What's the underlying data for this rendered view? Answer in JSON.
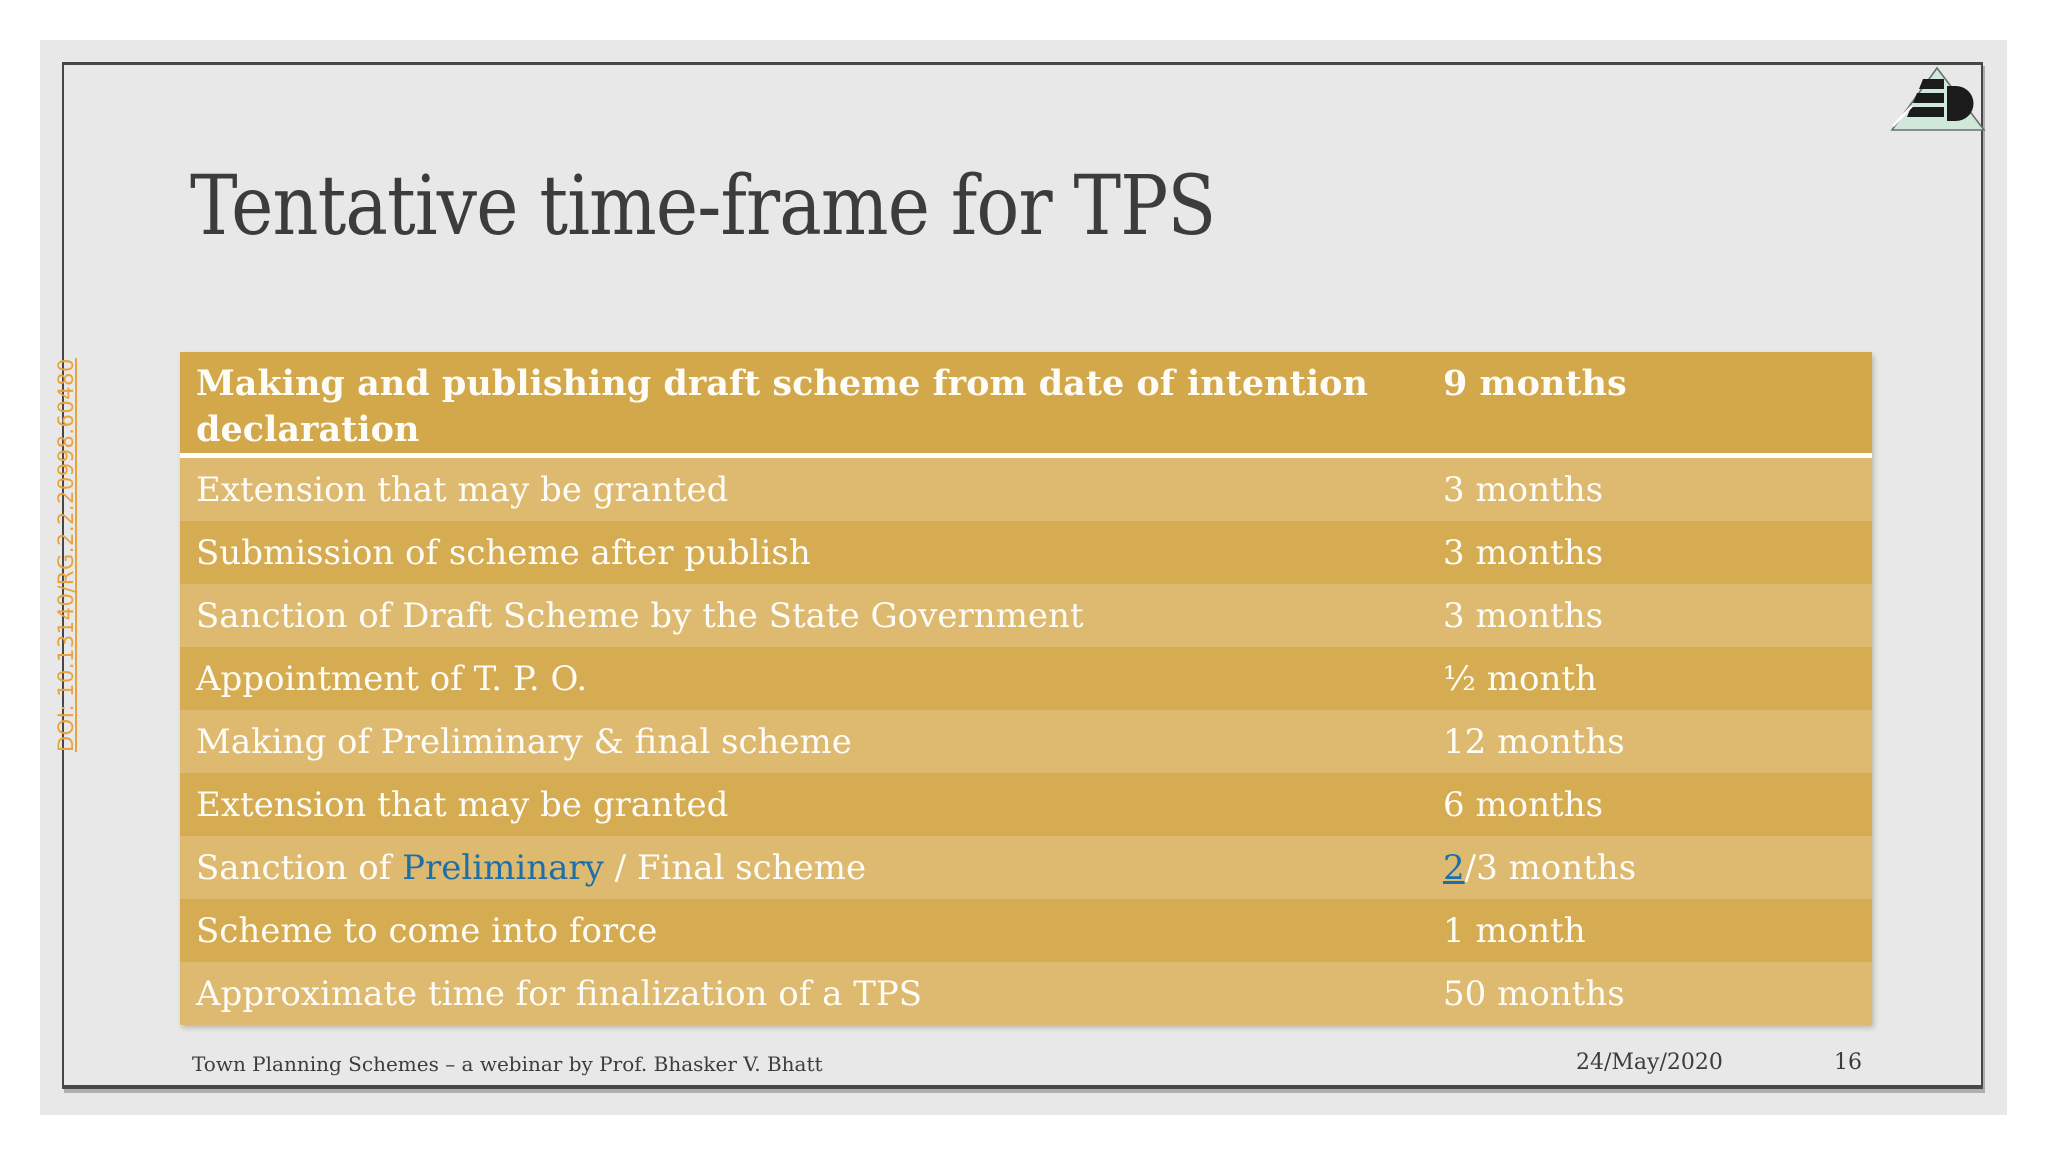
{
  "slide": {
    "title": "Tentative time-frame for TPS",
    "doi": "DOI: 10.13140/RG.2.2.20998.60480"
  },
  "table": {
    "header": {
      "task": "Making and publishing draft scheme from date of intention declaration",
      "duration": "9 months"
    },
    "rows": [
      {
        "shade": "light",
        "task": "Extension that may be granted",
        "duration": "3 months"
      },
      {
        "shade": "dark",
        "task": "Submission of scheme after publish",
        "duration": "3 months"
      },
      {
        "shade": "light",
        "task": "Sanction of Draft Scheme by the State Government",
        "duration": "3 months"
      },
      {
        "shade": "dark",
        "task": "Appointment of T. P. O.",
        "duration": "½ month"
      },
      {
        "shade": "light",
        "task": "Making of Preliminary & final scheme",
        "duration": "12 months"
      },
      {
        "shade": "dark",
        "task": "Extension that may be granted",
        "duration": "6 months"
      },
      {
        "shade": "light",
        "task": [
          {
            "t": "Sanction of "
          },
          {
            "t": "Preliminary",
            "style": "link-text"
          },
          {
            "t": " / Final scheme"
          }
        ],
        "duration": [
          {
            "t": "2",
            "style": "link-underline"
          },
          {
            "t": "/3 months"
          }
        ]
      },
      {
        "shade": "dark",
        "task": "Scheme to come into force",
        "duration": "1 month"
      },
      {
        "shade": "light",
        "task": "Approximate time for finalization of a TPS",
        "duration": "50 months"
      }
    ]
  },
  "footer": {
    "left": "Town Planning Schemes – a webinar by Prof. Bhasker V. Bhatt",
    "date": "24/May/2020",
    "page": "16"
  },
  "colors": {
    "bg-slide": "#e9e8e8",
    "frame": "#474747",
    "gold-header": "#d2a84b",
    "gold-dark": "#d5ac52",
    "gold-light": "#deba70",
    "text-dark": "#3d3c3c",
    "text-white": "#fdfcf7",
    "link-blue": "#1d6fa8",
    "doi-orange": "#e8a33d",
    "logo-green": "#cfe8d9",
    "logo-black": "#1b1b1b"
  }
}
